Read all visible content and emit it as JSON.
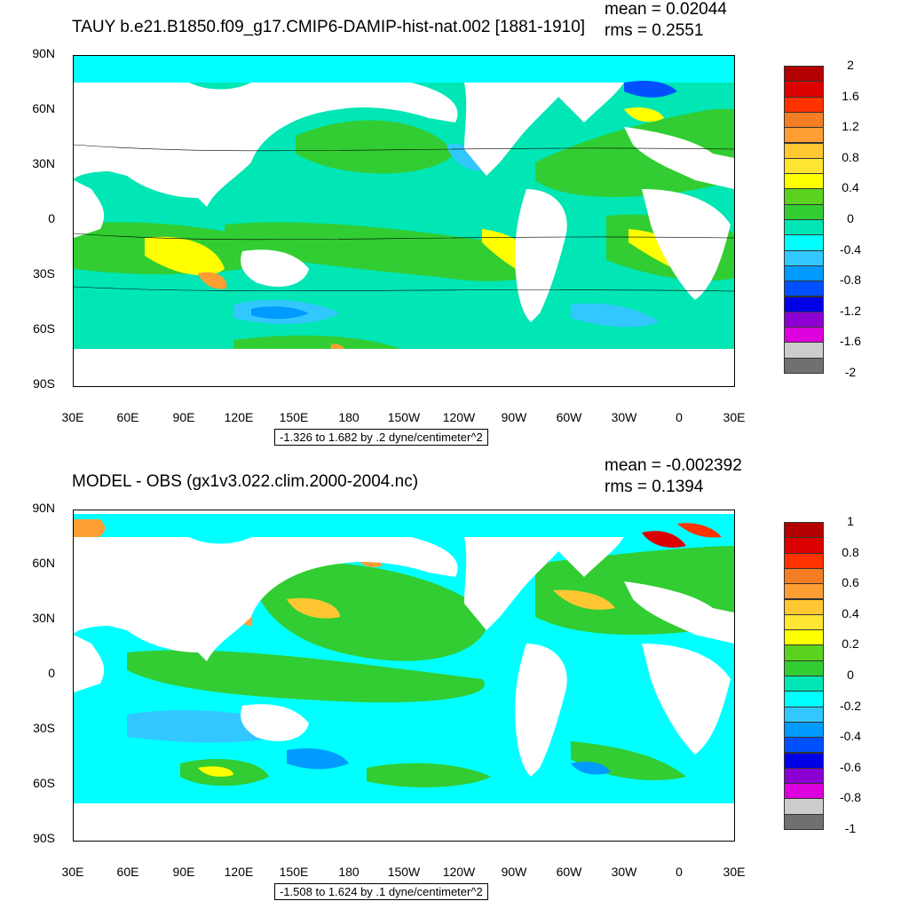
{
  "top": {
    "title": "TAUY b.e21.B1850.f09_g17.CMIP6-DAMIP-hist-nat.002 [1881-1910]",
    "mean": "mean = 0.02044",
    "rms": "rms = 0.2551",
    "info": "-1.326 to 1.682 by .2 dyne/centimeter^2",
    "lat_labels": [
      "90N",
      "60N",
      "30N",
      "0",
      "30S",
      "60S",
      "90S"
    ],
    "lon_labels": [
      "30E",
      "60E",
      "90E",
      "120E",
      "150E",
      "180",
      "150W",
      "120W",
      "90W",
      "60W",
      "30W",
      "0",
      "30E"
    ],
    "colorbar_labels": [
      "2",
      "1.6",
      "1.2",
      "0.8",
      "0.4",
      "0",
      "-0.4",
      "-0.8",
      "-1.2",
      "-1.6",
      "-2"
    ],
    "colorbar_colors": [
      "#b40000",
      "#dc0000",
      "#ff3200",
      "#f57d23",
      "#ff9e33",
      "#ffc832",
      "#ffe632",
      "#ffff00",
      "#5ad21e",
      "#32cd32",
      "#00e6b4",
      "#00ffff",
      "#32c8ff",
      "#009bff",
      "#0050ff",
      "#0000e6",
      "#8c00d2",
      "#dc00dc",
      "#cccccc",
      "#707070"
    ]
  },
  "bottom": {
    "title": "MODEL - OBS (gx1v3.022.clim.2000-2004.nc)",
    "mean": "mean = -0.002392",
    "rms": "rms = 0.1394",
    "info": "-1.508 to 1.624 by .1 dyne/centimeter^2",
    "lat_labels": [
      "90N",
      "60N",
      "30N",
      "0",
      "30S",
      "60S",
      "90S"
    ],
    "lon_labels": [
      "30E",
      "60E",
      "90E",
      "120E",
      "150E",
      "180",
      "150W",
      "120W",
      "90W",
      "60W",
      "30W",
      "0",
      "30E"
    ],
    "colorbar_labels": [
      "1",
      "0.8",
      "0.6",
      "0.4",
      "0.2",
      "0",
      "-0.2",
      "-0.4",
      "-0.6",
      "-0.8",
      "-1"
    ],
    "colorbar_colors": [
      "#b40000",
      "#dc0000",
      "#ff3200",
      "#f57d23",
      "#ff9e33",
      "#ffc832",
      "#ffe632",
      "#ffff00",
      "#5ad21e",
      "#32cd32",
      "#00e6b4",
      "#00ffff",
      "#32c8ff",
      "#009bff",
      "#0050ff",
      "#0000e6",
      "#8c00d2",
      "#dc00dc",
      "#cccccc",
      "#707070"
    ]
  },
  "map_colors": {
    "ocean_base_top": "#00e6b4",
    "ocean_base_bottom": "#00ffff",
    "green": "#32cd32",
    "yellow": "#ffff00",
    "orange": "#ff9e33",
    "blue": "#32c8ff",
    "land": "#ffffff"
  }
}
